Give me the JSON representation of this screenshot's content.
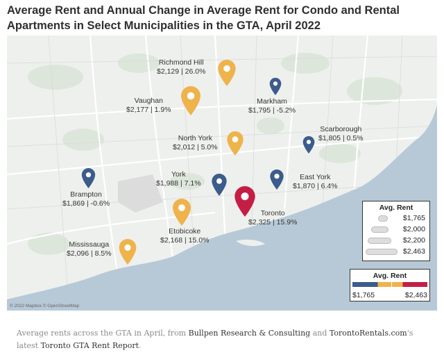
{
  "title": "Average Rent and Annual Change in Average Rent for Condo and Rental Apartments in Select Municipalities in the GTA, April 2022",
  "colors": {
    "low": "#3b5c8c",
    "mid": "#efb34b",
    "high": "#c41e45",
    "water": "#b7c9d7",
    "land": "#eef0ee"
  },
  "pins": [
    {
      "name": "Richmond Hill",
      "value": "$2,129 | 26.0%",
      "rent": 2129,
      "change": 26.0,
      "color": "mid",
      "icon": "map-pin-icon"
    },
    {
      "name": "Vaughan",
      "value": "$2,177 | 1.9%",
      "rent": 2177,
      "change": 1.9,
      "color": "mid",
      "icon": "map-pin-icon"
    },
    {
      "name": "Markham",
      "value": "$1,795 | -5.2%",
      "rent": 1795,
      "change": -5.2,
      "color": "low",
      "icon": "map-pin-icon"
    },
    {
      "name": "North York",
      "value": "$2,012 | 5.0%",
      "rent": 2012,
      "change": 5.0,
      "color": "mid",
      "icon": "map-pin-icon"
    },
    {
      "name": "Scarborough",
      "value": "$1,805 | 0.5%",
      "rent": 1805,
      "change": 0.5,
      "color": "low",
      "icon": "map-pin-icon"
    },
    {
      "name": "Brampton",
      "value": "$1,869 | -0.6%",
      "rent": 1869,
      "change": -0.6,
      "color": "low",
      "icon": "map-pin-icon"
    },
    {
      "name": "York",
      "value": "$1,988 | 7.1%",
      "rent": 1988,
      "change": 7.1,
      "color": "low",
      "icon": "map-pin-icon"
    },
    {
      "name": "East York",
      "value": "$1,870 | 6.4%",
      "rent": 1870,
      "change": 6.4,
      "color": "low",
      "icon": "map-pin-icon"
    },
    {
      "name": "Toronto",
      "value": "$2,325 | 15.9%",
      "rent": 2325,
      "change": 15.9,
      "color": "high",
      "icon": "map-pin-icon"
    },
    {
      "name": "Etobicoke",
      "value": "$2,168 | 15.0%",
      "rent": 2168,
      "change": 15.0,
      "color": "mid",
      "icon": "map-pin-icon"
    },
    {
      "name": "Mississauga",
      "value": "$2,096 | 8.5%",
      "rent": 2096,
      "change": 8.5,
      "color": "mid",
      "icon": "map-pin-icon"
    }
  ],
  "legend_size": {
    "title": "Avg. Rent",
    "items": [
      {
        "label": "$1,765",
        "value": 1765
      },
      {
        "label": "$2,000",
        "value": 2000
      },
      {
        "label": "$2,200",
        "value": 2200
      },
      {
        "label": "$2,463",
        "value": 2463
      }
    ]
  },
  "legend_color": {
    "title": "Avg. Rent",
    "min": "$1,765",
    "max": "$2,463"
  },
  "attribution": "© 2022 Mapbox © OpenStreetMap",
  "caption": {
    "pre": "Average rents across the GTA in April, from ",
    "src1": "Bullpen Research & Consulting",
    "mid": " and ",
    "src2": "TorontoRentals.com",
    "post": "'s latest ",
    "src3": "Toronto GTA Rent Report",
    "end": "."
  }
}
